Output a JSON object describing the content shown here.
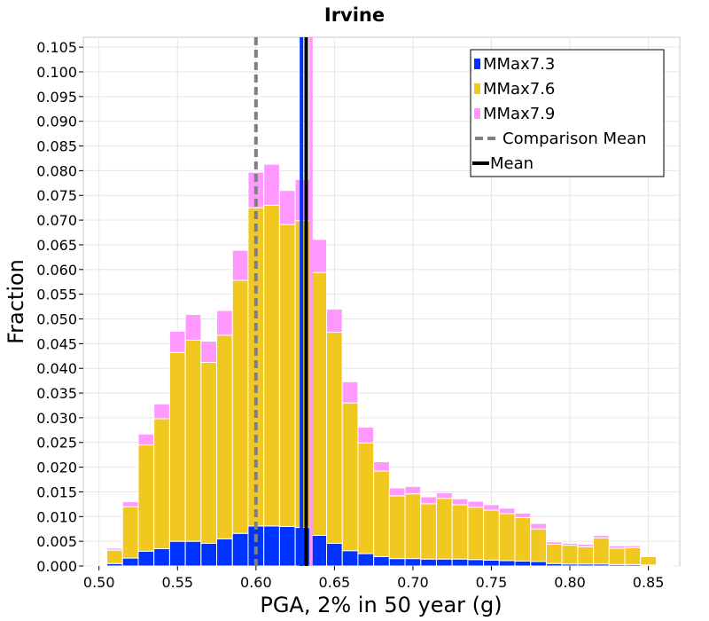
{
  "chart_data": {
    "type": "bar",
    "stacked": true,
    "title": "Irvine",
    "xlabel": "PGA, 2% in 50 year (g)",
    "ylabel": "Fraction",
    "xlim": [
      0.49,
      0.87
    ],
    "ylim": [
      0.0,
      0.107
    ],
    "bin_width": 0.01,
    "x_ticks": [
      "0.50",
      "0.55",
      "0.60",
      "0.65",
      "0.70",
      "0.75",
      "0.80",
      "0.85"
    ],
    "y_ticks": [
      "0.000",
      "0.005",
      "0.010",
      "0.015",
      "0.020",
      "0.025",
      "0.030",
      "0.035",
      "0.040",
      "0.045",
      "0.050",
      "0.055",
      "0.060",
      "0.065",
      "0.070",
      "0.075",
      "0.080",
      "0.085",
      "0.090",
      "0.095",
      "0.100",
      "0.105"
    ],
    "grid": true,
    "legend_position": "top-right",
    "bin_centers": [
      0.5,
      0.51,
      0.52,
      0.53,
      0.54,
      0.55,
      0.56,
      0.57,
      0.58,
      0.59,
      0.6,
      0.61,
      0.62,
      0.63,
      0.64,
      0.65,
      0.66,
      0.67,
      0.68,
      0.69,
      0.7,
      0.71,
      0.72,
      0.73,
      0.74,
      0.75,
      0.76,
      0.77,
      0.78,
      0.79,
      0.8,
      0.81,
      0.82,
      0.83,
      0.84,
      0.85,
      0.86
    ],
    "series": [
      {
        "name": "MMax7.3",
        "color": "#0033ff",
        "values": [
          0.0002,
          0.0005,
          0.0016,
          0.003,
          0.0035,
          0.005,
          0.005,
          0.0046,
          0.0055,
          0.0066,
          0.0081,
          0.0081,
          0.008,
          0.0078,
          0.0062,
          0.0046,
          0.0031,
          0.0025,
          0.0019,
          0.0015,
          0.0015,
          0.0014,
          0.0014,
          0.0014,
          0.0013,
          0.0012,
          0.0011,
          0.001,
          0.0009,
          0.0005,
          0.0004,
          0.0004,
          0.0004,
          0.0003,
          0.0003,
          0.0002,
          0.0001
        ]
      },
      {
        "name": "MMax7.6",
        "color": "#f0c820",
        "values": [
          0.0001,
          0.0027,
          0.0104,
          0.0215,
          0.0263,
          0.0382,
          0.0407,
          0.0366,
          0.0412,
          0.0512,
          0.0644,
          0.0649,
          0.0611,
          0.0621,
          0.0532,
          0.0427,
          0.0299,
          0.0224,
          0.0173,
          0.0127,
          0.0131,
          0.0112,
          0.0123,
          0.011,
          0.0106,
          0.0101,
          0.0095,
          0.0088,
          0.0066,
          0.0039,
          0.0038,
          0.0035,
          0.0053,
          0.0033,
          0.0034,
          0.0017,
          0.0001
        ]
      },
      {
        "name": "MMax7.9",
        "color": "#ff99ff",
        "values": [
          0.0,
          0.0004,
          0.001,
          0.0022,
          0.003,
          0.0043,
          0.0052,
          0.0043,
          0.005,
          0.0061,
          0.0072,
          0.0083,
          0.0069,
          0.0083,
          0.0067,
          0.0047,
          0.0043,
          0.0032,
          0.0019,
          0.0016,
          0.0015,
          0.0014,
          0.0011,
          0.0012,
          0.0012,
          0.0011,
          0.0011,
          0.0009,
          0.0011,
          0.0005,
          0.0004,
          0.0005,
          0.0005,
          0.0005,
          0.0004,
          0.0002,
          0.0001
        ]
      }
    ],
    "lines": [
      {
        "name": "Comparison Mean",
        "x": 0.6,
        "color": "#808080",
        "style": "dashed"
      },
      {
        "name": "MMax7.3 mean",
        "x": 0.629,
        "color": "#0033ff",
        "style": "solid"
      },
      {
        "name": "MMax7.9 mean",
        "x": 0.635,
        "color": "#ff99ff",
        "style": "solid"
      },
      {
        "name": "Mean",
        "x": 0.632,
        "color": "#000000",
        "style": "solid"
      }
    ],
    "legend": [
      {
        "label": "MMax7.3",
        "kind": "patch",
        "color": "#0033ff"
      },
      {
        "label": "MMax7.6",
        "kind": "patch",
        "color": "#f0c820"
      },
      {
        "label": "MMax7.9",
        "kind": "patch",
        "color": "#ff99ff"
      },
      {
        "label": "Comparison Mean",
        "kind": "dashed-line",
        "color": "#808080"
      },
      {
        "label": "Mean",
        "kind": "solid-line",
        "color": "#000000"
      }
    ]
  }
}
